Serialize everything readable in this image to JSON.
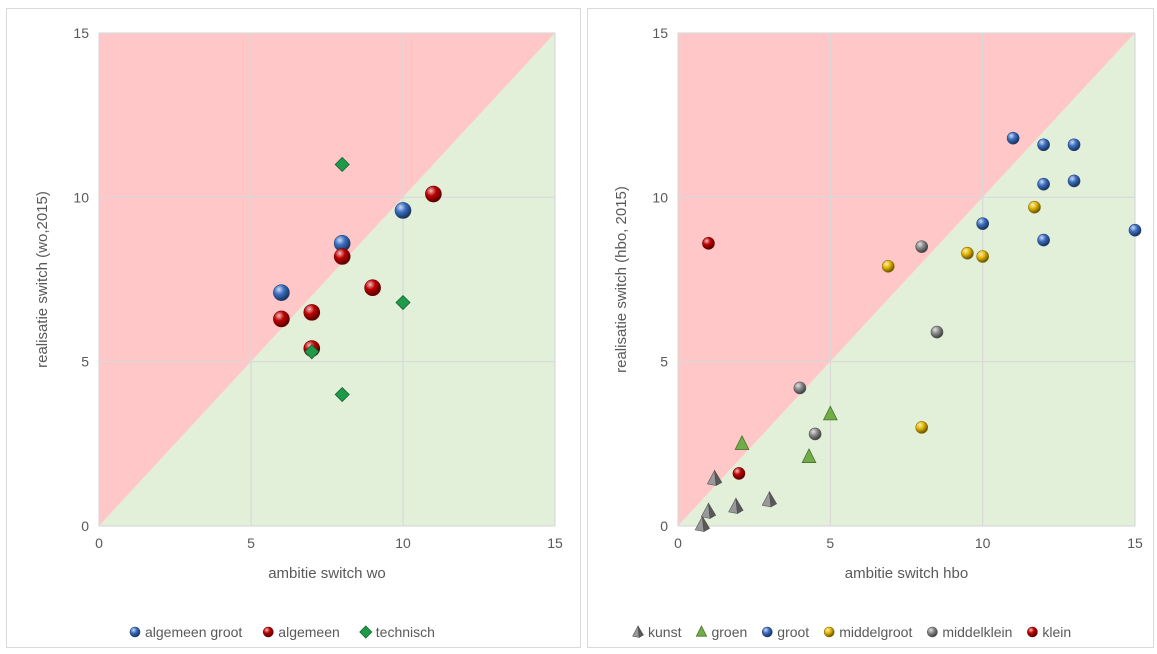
{
  "chart_data": [
    {
      "type": "scatter",
      "xlabel": "ambitie switch wo",
      "ylabel": "realisatie switch (wo,2015)",
      "xlim": [
        0,
        15
      ],
      "ylim": [
        0,
        15
      ],
      "xticks": [
        "0",
        "5",
        "10",
        "15"
      ],
      "yticks": [
        "0",
        "5",
        "10",
        "15"
      ],
      "grid": true,
      "background_regions": {
        "above_diagonal": "#ffc7c7",
        "below_diagonal": "#e2efd9"
      },
      "legend_position": "bottom",
      "series": [
        {
          "name": "algemeen groot",
          "marker": "sphere",
          "color": "#3b6fc4",
          "points": [
            [
              6,
              7.1
            ],
            [
              8,
              8.6
            ],
            [
              10,
              9.6
            ]
          ]
        },
        {
          "name": "algemeen",
          "marker": "sphere",
          "color": "#c00000",
          "points": [
            [
              6,
              6.3
            ],
            [
              7,
              6.5
            ],
            [
              7,
              5.4
            ],
            [
              8,
              8.2
            ],
            [
              9,
              7.25
            ],
            [
              11,
              10.1
            ]
          ]
        },
        {
          "name": "technisch",
          "marker": "diamond",
          "color": "#1f9a4a",
          "points": [
            [
              7,
              5.3
            ],
            [
              8,
              11.0
            ],
            [
              8,
              4.0
            ],
            [
              10,
              6.8
            ]
          ]
        }
      ]
    },
    {
      "type": "scatter",
      "xlabel": "ambitie switch hbo",
      "ylabel": "realisatie switch (hbo, 2015)",
      "xlim": [
        0,
        15
      ],
      "ylim": [
        0,
        15
      ],
      "xticks": [
        "0",
        "5",
        "10",
        "15"
      ],
      "yticks": [
        "0",
        "5",
        "10",
        "15"
      ],
      "grid": true,
      "background_regions": {
        "above_diagonal": "#ffc7c7",
        "below_diagonal": "#e2efd9"
      },
      "legend_position": "bottom",
      "series": [
        {
          "name": "kunst",
          "marker": "pyramid",
          "color": "#7f7f7f",
          "points": [
            [
              0.8,
              0.05
            ],
            [
              1.0,
              0.45
            ],
            [
              1.2,
              1.45
            ],
            [
              1.9,
              0.6
            ],
            [
              3.0,
              0.8
            ]
          ]
        },
        {
          "name": "groen",
          "marker": "triangle",
          "color": "#70ad47",
          "points": [
            [
              2.1,
              2.5
            ],
            [
              4.3,
              2.1
            ],
            [
              5.0,
              3.4
            ]
          ]
        },
        {
          "name": "groot",
          "marker": "sphere",
          "color": "#3b6fc4",
          "points": [
            [
              10,
              9.2
            ],
            [
              11,
              11.8
            ],
            [
              12,
              11.6
            ],
            [
              12,
              10.4
            ],
            [
              12,
              8.7
            ],
            [
              13,
              11.6
            ],
            [
              13,
              10.5
            ],
            [
              15,
              9.0
            ]
          ]
        },
        {
          "name": "middelgroot",
          "marker": "sphere",
          "color": "#e6b800",
          "points": [
            [
              6.9,
              7.9
            ],
            [
              8,
              3.0
            ],
            [
              9.5,
              8.3
            ],
            [
              10,
              8.2
            ],
            [
              11.7,
              9.7
            ]
          ]
        },
        {
          "name": "middelklein",
          "marker": "sphere",
          "color": "#8c8c8c",
          "points": [
            [
              4,
              4.2
            ],
            [
              4.5,
              2.8
            ],
            [
              8,
              8.5
            ],
            [
              8.5,
              5.9
            ]
          ]
        },
        {
          "name": "klein",
          "marker": "sphere",
          "color": "#c00000",
          "points": [
            [
              1,
              8.6
            ],
            [
              2,
              1.6
            ]
          ]
        }
      ]
    }
  ]
}
